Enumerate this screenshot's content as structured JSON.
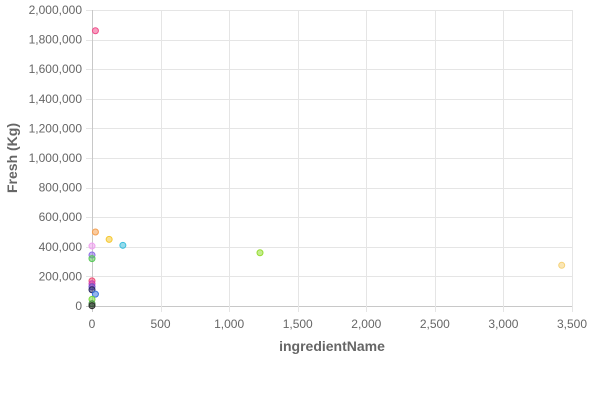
{
  "chart_data": {
    "type": "scatter",
    "title": "",
    "xlabel": "ingredientName",
    "ylabel": "Fresh (Kg)",
    "xlim": [
      0,
      3500
    ],
    "ylim": [
      0,
      2000000
    ],
    "x_ticks": [
      "0",
      "500",
      "1,000",
      "1,500",
      "2,000",
      "2,500",
      "3,000",
      "3,500"
    ],
    "y_ticks": [
      "0",
      "200,000",
      "400,000",
      "600,000",
      "800,000",
      "1,000,000",
      "1,200,000",
      "1,400,000",
      "1,600,000",
      "1,800,000",
      "2,000,000"
    ],
    "x_tick_values": [
      0,
      500,
      1000,
      1500,
      2000,
      2500,
      3000,
      3500
    ],
    "y_tick_values": [
      0,
      200000,
      400000,
      600000,
      800000,
      1000000,
      1200000,
      1400000,
      1600000,
      1800000,
      2000000
    ],
    "grid": true,
    "legend": "none",
    "points": [
      {
        "x": 25,
        "y": 1860000,
        "color": "#f0508c"
      },
      {
        "x": 25,
        "y": 500000,
        "color": "#f5a050"
      },
      {
        "x": 125,
        "y": 450000,
        "color": "#f5c832"
      },
      {
        "x": 225,
        "y": 410000,
        "color": "#3cbedc"
      },
      {
        "x": 1225,
        "y": 360000,
        "color": "#96dc32"
      },
      {
        "x": 3425,
        "y": 275000,
        "color": "#f5d278"
      },
      {
        "x": 0,
        "y": 405000,
        "color": "#f0a0f0"
      },
      {
        "x": 0,
        "y": 345000,
        "color": "#8c6ee6"
      },
      {
        "x": 0,
        "y": 320000,
        "color": "#5ac85a"
      },
      {
        "x": 0,
        "y": 170000,
        "color": "#f05078"
      },
      {
        "x": 0,
        "y": 150000,
        "color": "#c83cb4"
      },
      {
        "x": 0,
        "y": 130000,
        "color": "#6e50c8"
      },
      {
        "x": 0,
        "y": 110000,
        "color": "#282864"
      },
      {
        "x": 25,
        "y": 80000,
        "color": "#3c78dc"
      },
      {
        "x": 0,
        "y": 45000,
        "color": "#78dc3c"
      },
      {
        "x": 0,
        "y": 15000,
        "color": "#4a8c4a"
      },
      {
        "x": 0,
        "y": 2000,
        "color": "#282828"
      }
    ]
  }
}
